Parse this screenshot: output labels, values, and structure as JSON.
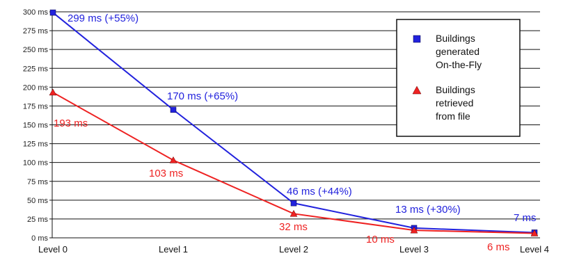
{
  "chart_data": {
    "type": "line",
    "categories": [
      "Level 0",
      "Level 1",
      "Level 2",
      "Level 3",
      "Level 4"
    ],
    "ylim": [
      0,
      300
    ],
    "y_tick_step": 25,
    "y_unit": "ms",
    "y_tick_labels": [
      "0 ms",
      "25 ms",
      "50 ms",
      "75 ms",
      "100 ms",
      "125 ms",
      "150 ms",
      "175 ms",
      "200 ms",
      "225 ms",
      "250 ms",
      "275 ms",
      "300 ms"
    ],
    "grid": true,
    "legend_position": "top-right",
    "series": [
      {
        "name": "Buildings generated On-the-Fly",
        "legend_lines": [
          "Buildings",
          "generated",
          "On-the-Fly"
        ],
        "color": "#2222dd",
        "marker": "square",
        "values": [
          299,
          170,
          46,
          13,
          7
        ],
        "labels": [
          "299 ms (+55%)",
          "170 ms (+65%)",
          "46 ms (+44%)",
          "13 ms (+30%)",
          "7 ms"
        ]
      },
      {
        "name": "Buildings retrieved from file",
        "legend_lines": [
          "Buildings",
          "retrieved",
          "from file"
        ],
        "color": "#ee2222",
        "marker": "triangle",
        "values": [
          193,
          103,
          32,
          10,
          6
        ],
        "labels": [
          "193 ms",
          "103 ms",
          "32 ms",
          "10 ms",
          "6 ms"
        ]
      }
    ]
  }
}
